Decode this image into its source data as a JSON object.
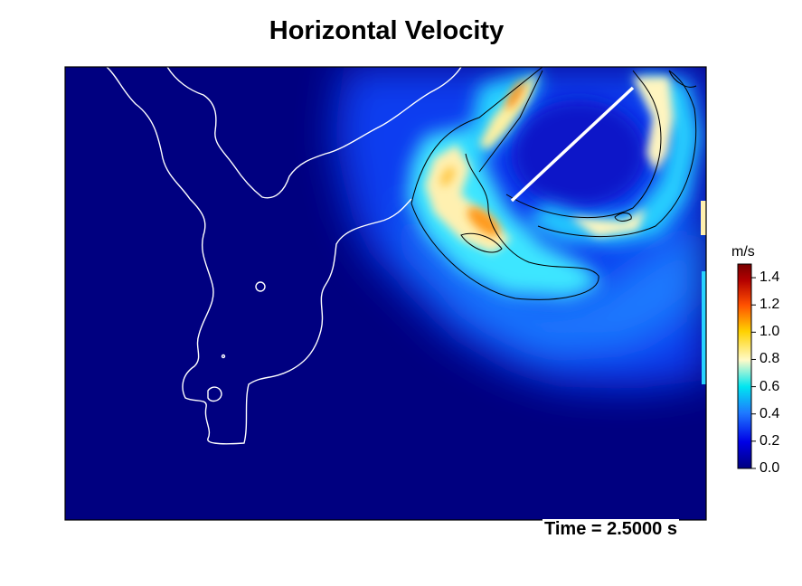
{
  "chart_data": {
    "type": "heatmap",
    "title": "Horizontal Velocity",
    "time_label": "Time = 2.5000 s",
    "colorbar": {
      "unit": "m/s",
      "range": [
        0.0,
        1.5
      ],
      "ticks": [
        "0.0",
        "0.2",
        "0.4",
        "0.6",
        "0.8",
        "1.0",
        "1.2",
        "1.4"
      ],
      "tick_values": [
        0.0,
        0.2,
        0.4,
        0.6,
        0.8,
        1.0,
        1.2,
        1.4
      ],
      "colormap": [
        "#000080",
        "#0000e6",
        "#1e78ff",
        "#00e6f0",
        "#fffac8",
        "#ffd200",
        "#ff5000",
        "#b40000",
        "#780000"
      ]
    },
    "colors": {
      "background_field": "#000080",
      "shoreline": "#ffffff",
      "contour": "#000000"
    }
  }
}
